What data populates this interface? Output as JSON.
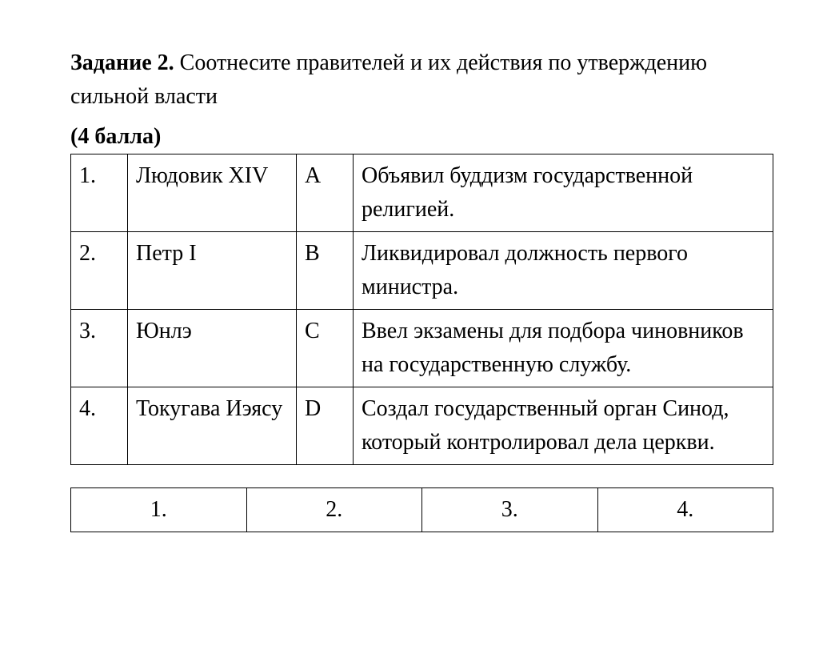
{
  "header": {
    "task_label": "Задание  2.",
    "task_text": " Соотнесите правителей и их действия по утверждению сильной власти",
    "points": "(4 балла)"
  },
  "table": {
    "rows": [
      {
        "num": "1.",
        "ruler": "Людовик XIV",
        "letter": "А",
        "desc": "Объявил буддизм государственной религией."
      },
      {
        "num": "2.",
        "ruler": "Петр I",
        "letter": "В",
        "desc": "Ликвидировал должность первого министра."
      },
      {
        "num": "3.",
        "ruler": "Юнлэ",
        "letter": "С",
        "desc": "Ввел экзамены для подбора чиновников на государственную службу."
      },
      {
        "num": "4.",
        "ruler": "Токугава Иэясу",
        "letter": "D",
        "desc": "Создал государственный орган Синод, который контролировал дела церкви."
      }
    ]
  },
  "answers": {
    "cells": [
      "1.",
      "2.",
      "3.",
      "4."
    ]
  }
}
